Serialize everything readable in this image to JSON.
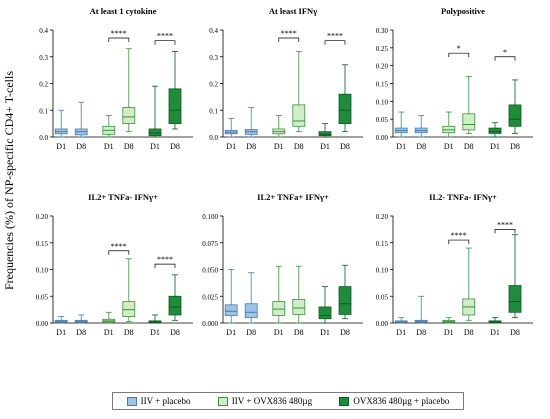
{
  "ylabel": "Frequencies (%) of NP-specific CD4+ T-cells",
  "legend": [
    {
      "label": "IIV + placebo",
      "color": "#9dc3e6",
      "stroke": "#4a7ba6"
    },
    {
      "label": "IIV + OVX836 480µg",
      "color": "#cfeec8",
      "stroke": "#3e8f3e"
    },
    {
      "label": "OVX836 480µg + placebo",
      "color": "#1f8b3b",
      "stroke": "#0e5a24"
    }
  ],
  "chart_data": [
    {
      "type": "box",
      "title": "At least 1 cytokine",
      "categories": [
        "D1",
        "D8"
      ],
      "ylim": [
        0,
        0.4
      ],
      "yticks": [
        "0.0",
        "0.1",
        "0.2",
        "0.3",
        "0.4"
      ],
      "groups": [
        {
          "series": "IIV + placebo",
          "boxes": [
            {
              "x": "D1",
              "min": 0.0,
              "q1": 0.012,
              "median": 0.02,
              "q3": 0.03,
              "max": 0.1
            },
            {
              "x": "D8",
              "min": 0.0,
              "q1": 0.008,
              "median": 0.02,
              "q3": 0.03,
              "max": 0.13
            }
          ]
        },
        {
          "series": "IIV + OVX836 480µg",
          "boxes": [
            {
              "x": "D1",
              "min": 0.0,
              "q1": 0.01,
              "median": 0.025,
              "q3": 0.04,
              "max": 0.08
            },
            {
              "x": "D8",
              "min": 0.02,
              "q1": 0.05,
              "median": 0.075,
              "q3": 0.11,
              "max": 0.33
            }
          ]
        },
        {
          "series": "OVX836 480µg + placebo",
          "boxes": [
            {
              "x": "D1",
              "min": 0.0,
              "q1": 0.005,
              "median": 0.015,
              "q3": 0.03,
              "max": 0.19
            },
            {
              "x": "D8",
              "min": 0.03,
              "q1": 0.05,
              "median": 0.1,
              "q3": 0.18,
              "max": 0.32
            }
          ]
        }
      ],
      "significance": [
        {
          "group": "IIV + OVX836 480µg",
          "label": "****",
          "y": 0.37
        },
        {
          "group": "OVX836 480µg + placebo",
          "label": "****",
          "y": 0.36
        }
      ]
    },
    {
      "type": "box",
      "title": "At least IFNγ",
      "categories": [
        "D1",
        "D8"
      ],
      "ylim": [
        0,
        0.4
      ],
      "yticks": [
        "0.0",
        "0.1",
        "0.2",
        "0.3",
        "0.4"
      ],
      "groups": [
        {
          "series": "IIV + placebo",
          "boxes": [
            {
              "x": "D1",
              "min": 0.0,
              "q1": 0.012,
              "median": 0.018,
              "q3": 0.025,
              "max": 0.07
            },
            {
              "x": "D8",
              "min": 0.0,
              "q1": 0.01,
              "median": 0.02,
              "q3": 0.028,
              "max": 0.11
            }
          ]
        },
        {
          "series": "IIV + OVX836 480µg",
          "boxes": [
            {
              "x": "D1",
              "min": 0.0,
              "q1": 0.012,
              "median": 0.02,
              "q3": 0.03,
              "max": 0.08
            },
            {
              "x": "D8",
              "min": 0.02,
              "q1": 0.04,
              "median": 0.06,
              "q3": 0.12,
              "max": 0.32
            }
          ]
        },
        {
          "series": "OVX836 480µg + placebo",
          "boxes": [
            {
              "x": "D1",
              "min": 0.0,
              "q1": 0.005,
              "median": 0.01,
              "q3": 0.02,
              "max": 0.05
            },
            {
              "x": "D8",
              "min": 0.02,
              "q1": 0.05,
              "median": 0.1,
              "q3": 0.16,
              "max": 0.27
            }
          ]
        }
      ],
      "significance": [
        {
          "group": "IIV + OVX836 480µg",
          "label": "****",
          "y": 0.37
        },
        {
          "group": "OVX836 480µg + placebo",
          "label": "****",
          "y": 0.36
        }
      ]
    },
    {
      "type": "box",
      "title": "Polypositive",
      "categories": [
        "D1",
        "D8"
      ],
      "ylim": [
        0,
        0.3
      ],
      "yticks": [
        "0.00",
        "0.05",
        "0.10",
        "0.15",
        "0.20",
        "0.25",
        "0.30"
      ],
      "groups": [
        {
          "series": "IIV + placebo",
          "boxes": [
            {
              "x": "D1",
              "min": 0.0,
              "q1": 0.012,
              "median": 0.018,
              "q3": 0.025,
              "max": 0.07
            },
            {
              "x": "D8",
              "min": 0.0,
              "q1": 0.012,
              "median": 0.018,
              "q3": 0.025,
              "max": 0.06
            }
          ]
        },
        {
          "series": "IIV + OVX836 480µg",
          "boxes": [
            {
              "x": "D1",
              "min": 0.0,
              "q1": 0.012,
              "median": 0.02,
              "q3": 0.03,
              "max": 0.07
            },
            {
              "x": "D8",
              "min": 0.01,
              "q1": 0.02,
              "median": 0.035,
              "q3": 0.065,
              "max": 0.17
            }
          ]
        },
        {
          "series": "OVX836 480µg + placebo",
          "boxes": [
            {
              "x": "D1",
              "min": 0.0,
              "q1": 0.01,
              "median": 0.015,
              "q3": 0.025,
              "max": 0.04
            },
            {
              "x": "D8",
              "min": 0.01,
              "q1": 0.03,
              "median": 0.05,
              "q3": 0.09,
              "max": 0.16
            }
          ]
        }
      ],
      "significance": [
        {
          "group": "IIV + OVX836 480µg",
          "label": "*",
          "y": 0.235
        },
        {
          "group": "OVX836 480µg + placebo",
          "label": "*",
          "y": 0.225
        }
      ]
    },
    {
      "type": "box",
      "title": "IL2+ TNFa- IFNγ+",
      "categories": [
        "D1",
        "D8"
      ],
      "ylim": [
        0,
        0.2
      ],
      "yticks": [
        "0.00",
        "0.05",
        "0.10",
        "0.15",
        "0.20"
      ],
      "groups": [
        {
          "series": "IIV + placebo",
          "boxes": [
            {
              "x": "D1",
              "min": 0.0,
              "q1": 0.001,
              "median": 0.003,
              "q3": 0.005,
              "max": 0.012
            },
            {
              "x": "D8",
              "min": 0.0,
              "q1": 0.001,
              "median": 0.003,
              "q3": 0.005,
              "max": 0.015
            }
          ]
        },
        {
          "series": "IIV + OVX836 480µg",
          "boxes": [
            {
              "x": "D1",
              "min": 0.0,
              "q1": 0.002,
              "median": 0.004,
              "q3": 0.007,
              "max": 0.02
            },
            {
              "x": "D8",
              "min": 0.003,
              "q1": 0.012,
              "median": 0.025,
              "q3": 0.04,
              "max": 0.12
            }
          ]
        },
        {
          "series": "OVX836 480µg + placebo",
          "boxes": [
            {
              "x": "D1",
              "min": 0.0,
              "q1": 0.001,
              "median": 0.002,
              "q3": 0.004,
              "max": 0.015
            },
            {
              "x": "D8",
              "min": 0.005,
              "q1": 0.015,
              "median": 0.03,
              "q3": 0.05,
              "max": 0.09
            }
          ]
        }
      ],
      "significance": [
        {
          "group": "IIV + OVX836 480µg",
          "label": "****",
          "y": 0.135
        },
        {
          "group": "OVX836 480µg + placebo",
          "label": "****",
          "y": 0.11
        }
      ]
    },
    {
      "type": "box",
      "title": "IL2+ TNFa+ IFNγ+",
      "categories": [
        "D1",
        "D8"
      ],
      "ylim": [
        0,
        0.1
      ],
      "yticks": [
        "0.000",
        "0.025",
        "0.050",
        "0.075",
        "0.100"
      ],
      "groups": [
        {
          "series": "IIV + placebo",
          "boxes": [
            {
              "x": "D1",
              "min": 0.0,
              "q1": 0.007,
              "median": 0.011,
              "q3": 0.017,
              "max": 0.05
            },
            {
              "x": "D8",
              "min": 0.0,
              "q1": 0.005,
              "median": 0.01,
              "q3": 0.018,
              "max": 0.047
            }
          ]
        },
        {
          "series": "IIV + OVX836 480µg",
          "boxes": [
            {
              "x": "D1",
              "min": 0.0,
              "q1": 0.007,
              "median": 0.013,
              "q3": 0.02,
              "max": 0.053
            },
            {
              "x": "D8",
              "min": 0.0,
              "q1": 0.008,
              "median": 0.014,
              "q3": 0.022,
              "max": 0.053
            }
          ]
        },
        {
          "series": "OVX836 480µg + placebo",
          "boxes": [
            {
              "x": "D1",
              "min": 0.0,
              "q1": 0.004,
              "median": 0.007,
              "q3": 0.015,
              "max": 0.034
            },
            {
              "x": "D8",
              "min": 0.004,
              "q1": 0.008,
              "median": 0.018,
              "q3": 0.034,
              "max": 0.054
            }
          ]
        }
      ],
      "significance": []
    },
    {
      "type": "box",
      "title": "IL2- TNFa- IFNγ+",
      "categories": [
        "D1",
        "D8"
      ],
      "ylim": [
        0,
        0.2
      ],
      "yticks": [
        "0.00",
        "0.05",
        "0.10",
        "0.15",
        "0.20"
      ],
      "groups": [
        {
          "series": "IIV + placebo",
          "boxes": [
            {
              "x": "D1",
              "min": 0.0,
              "q1": 0.001,
              "median": 0.002,
              "q3": 0.004,
              "max": 0.01
            },
            {
              "x": "D8",
              "min": 0.0,
              "q1": 0.001,
              "median": 0.003,
              "q3": 0.005,
              "max": 0.05
            }
          ]
        },
        {
          "series": "IIV + OVX836 480µg",
          "boxes": [
            {
              "x": "D1",
              "min": 0.0,
              "q1": 0.001,
              "median": 0.003,
              "q3": 0.005,
              "max": 0.01
            },
            {
              "x": "D8",
              "min": 0.005,
              "q1": 0.015,
              "median": 0.03,
              "q3": 0.045,
              "max": 0.14
            }
          ]
        },
        {
          "series": "OVX836 480µg + placebo",
          "boxes": [
            {
              "x": "D1",
              "min": 0.0,
              "q1": 0.001,
              "median": 0.002,
              "q3": 0.004,
              "max": 0.01
            },
            {
              "x": "D8",
              "min": 0.01,
              "q1": 0.02,
              "median": 0.04,
              "q3": 0.07,
              "max": 0.165
            }
          ]
        }
      ],
      "significance": [
        {
          "group": "IIV + OVX836 480µg",
          "label": "****",
          "y": 0.155
        },
        {
          "group": "OVX836 480µg + placebo",
          "label": "****",
          "y": 0.175
        }
      ]
    }
  ]
}
